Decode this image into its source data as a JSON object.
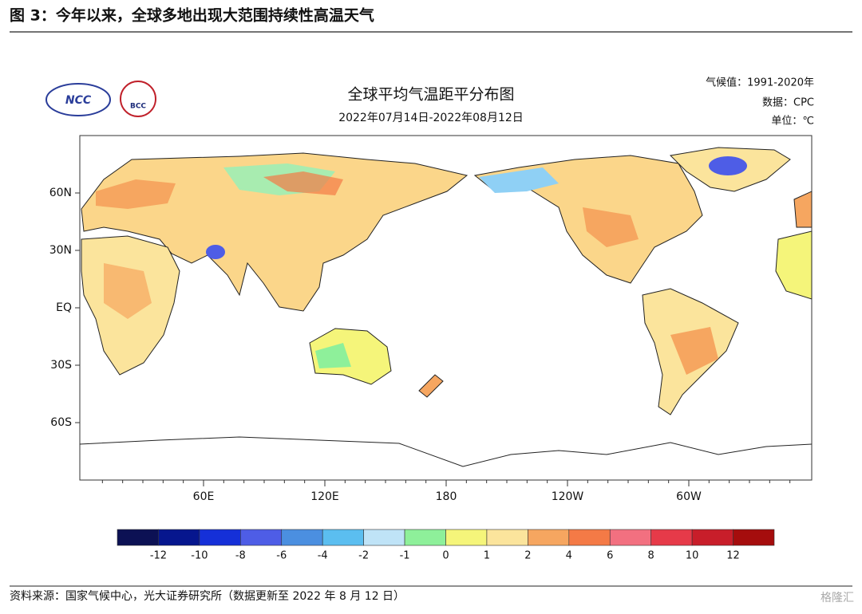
{
  "header": {
    "title": "图 3：今年以来，全球多地出现大范围持续性高温天气"
  },
  "map": {
    "title": "全球平均气温距平分布图",
    "subtitle": "2022年07月14日-2022年08月12日",
    "info": [
      "气候值：1991-2020年",
      "数据：CPC",
      "单位：℃"
    ],
    "logos": [
      "NCC",
      "BCC"
    ],
    "lat_labels": [
      "60N",
      "30N",
      "EQ",
      "30S",
      "60S"
    ],
    "lon_labels": [
      "60E",
      "120E",
      "180",
      "120W",
      "60W"
    ]
  },
  "legend": {
    "labels": [
      "-12",
      "-10",
      "-8",
      "-6",
      "-4",
      "-2",
      "-1",
      "0",
      "1",
      "2",
      "4",
      "6",
      "8",
      "10",
      "12"
    ],
    "colors": [
      "#0c1154",
      "#06168e",
      "#1530d8",
      "#4e5de6",
      "#4b8fe0",
      "#5bbef0",
      "#bfe3f7",
      "#8ef09a",
      "#f5f57a",
      "#fbe49c",
      "#f6a660",
      "#f47a46",
      "#f27080",
      "#e63a49",
      "#c81e2a",
      "#a50d0d"
    ]
  },
  "footer": {
    "source": "资料来源：国家气候中心，光大证券研究所（数据更新至 2022 年 8 月 12 日）",
    "watermark": "格隆汇"
  }
}
